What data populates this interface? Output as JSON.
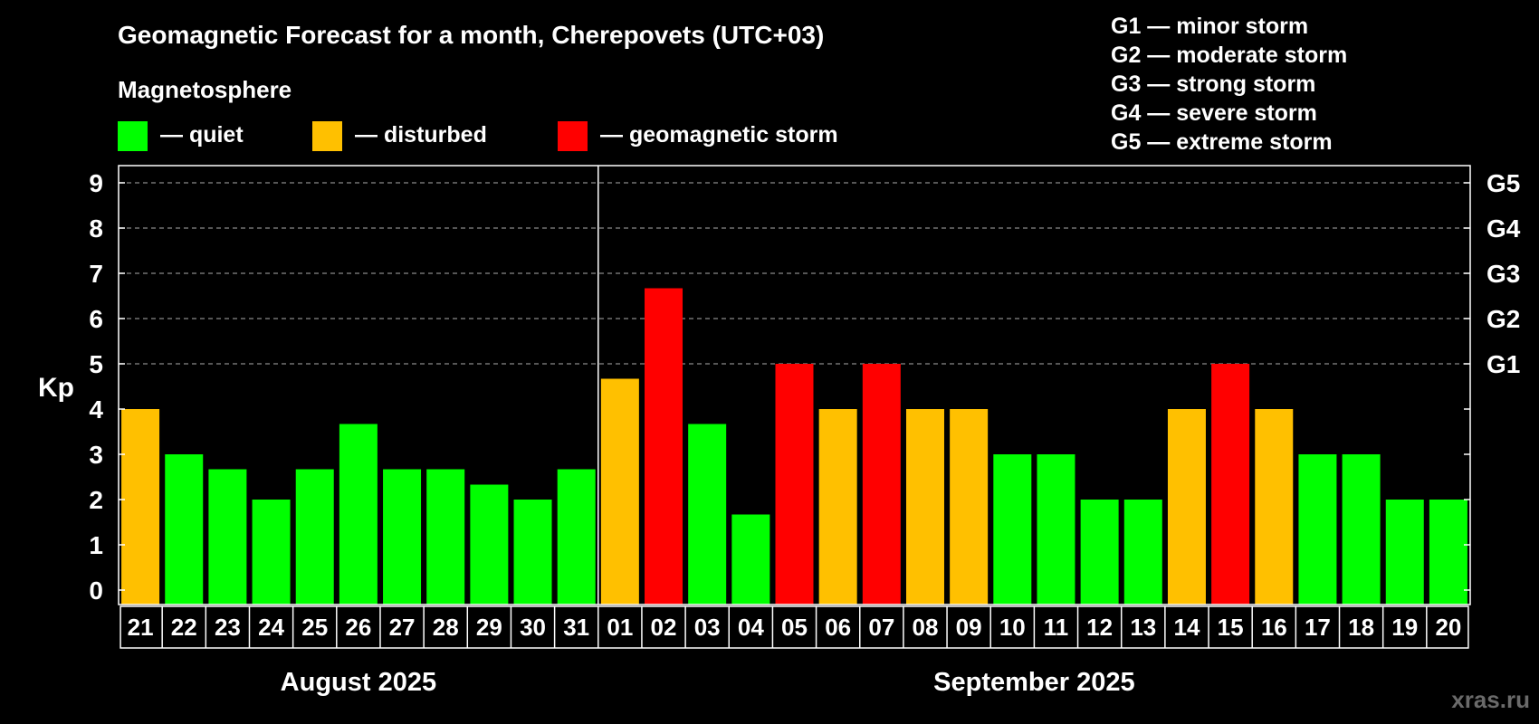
{
  "chart_data": {
    "type": "bar",
    "title": "Geomagnetic Forecast for a month, Cherepovets (UTC+03)",
    "legend_heading": "Magnetosphere",
    "legend": [
      {
        "label": "— quiet",
        "color": "#00ff00"
      },
      {
        "label": "— disturbed",
        "color": "#ffc000"
      },
      {
        "label": "— geomagnetic storm",
        "color": "#ff0000"
      }
    ],
    "storm_scale": [
      "G1 — minor storm",
      "G2 — moderate storm",
      "G3 — strong storm",
      "G4 — severe storm",
      "G5 — extreme storm"
    ],
    "ylabel": "Kp",
    "ylim": [
      0,
      9
    ],
    "yticks": [
      0,
      1,
      2,
      3,
      4,
      5,
      6,
      7,
      8,
      9
    ],
    "right_axis": [
      {
        "value": 5,
        "label": "G1"
      },
      {
        "value": 6,
        "label": "G2"
      },
      {
        "value": 7,
        "label": "G3"
      },
      {
        "value": 8,
        "label": "G4"
      },
      {
        "value": 9,
        "label": "G5"
      }
    ],
    "categories": [
      "21",
      "22",
      "23",
      "24",
      "25",
      "26",
      "27",
      "28",
      "29",
      "30",
      "31",
      "01",
      "02",
      "03",
      "04",
      "05",
      "06",
      "07",
      "08",
      "09",
      "10",
      "11",
      "12",
      "13",
      "14",
      "15",
      "16",
      "17",
      "18",
      "19",
      "20"
    ],
    "values": [
      4,
      3,
      2.67,
      2,
      2.67,
      3.67,
      2.67,
      2.67,
      2.33,
      2,
      2.67,
      4.67,
      6.67,
      3.67,
      1.67,
      5,
      4,
      5,
      4,
      4,
      3,
      3,
      2,
      2,
      4,
      5,
      4,
      3,
      3,
      2,
      2
    ],
    "colors": {
      "quiet": "#00ff00",
      "disturbed": "#ffc000",
      "storm": "#ff0000"
    },
    "months": [
      {
        "label": "August 2025",
        "start": 0,
        "count": 11
      },
      {
        "label": "September 2025",
        "start": 11,
        "count": 20
      }
    ]
  },
  "watermark": "xras.ru"
}
